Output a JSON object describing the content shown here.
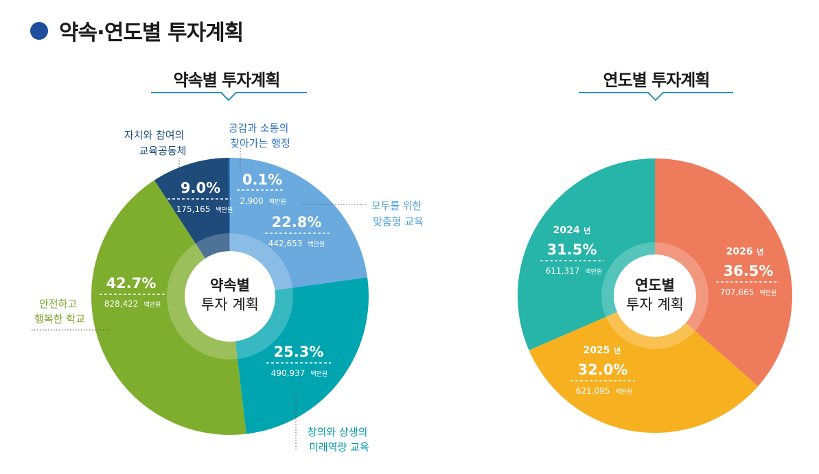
{
  "page_title": "약속·연도별 투자계획",
  "colors": {
    "header_dot": "#1f4e9c",
    "underline": "#2a8fc4",
    "slice_pledge": [
      "#6aaadf",
      "#00a5b0",
      "#7fae2e",
      "#1e4b7a",
      "#2f7fcf"
    ],
    "slice_year": [
      "#ee7b5c",
      "#f6b020",
      "#26b5a8"
    ]
  },
  "unit_label": "백만원",
  "chart_data": [
    {
      "type": "pie",
      "variant": "donut",
      "title": "약속별 투자계획",
      "center_label": [
        "약속별",
        "투자 계획"
      ],
      "start_at": "12 o'clock",
      "direction": "clockwise",
      "slices": [
        {
          "name_lines": [
            "모두를 위한",
            "맞춤형 교육"
          ],
          "percent_label": "22.8%",
          "amount_label": "442,653",
          "value": 442653
        },
        {
          "name_lines": [
            "창의와 상생의",
            "미래역량 교육"
          ],
          "percent_label": "25.3%",
          "amount_label": "490,937",
          "value": 490937
        },
        {
          "name_lines": [
            "안전하고",
            "행복한 학교"
          ],
          "percent_label": "42.7%",
          "amount_label": "828,422",
          "value": 828422
        },
        {
          "name_lines": [
            "자치와 참여의",
            "교육공동체"
          ],
          "percent_label": "9.0%",
          "amount_label": "175,165",
          "value": 175165
        },
        {
          "name_lines": [
            "공감과 소통의",
            "찾아가는 행정"
          ],
          "percent_label": "0.1%",
          "amount_label": "2,900",
          "value": 2900
        }
      ]
    },
    {
      "type": "pie",
      "variant": "donut",
      "title": "연도별 투자계획",
      "center_label": [
        "연도별",
        "투자 계획"
      ],
      "start_at": "12 o'clock",
      "direction": "clockwise",
      "slices": [
        {
          "year": "2026",
          "year_suffix": "년",
          "percent_label": "36.5%",
          "amount_label": "707,665",
          "value": 707665
        },
        {
          "year": "2025",
          "year_suffix": "년",
          "percent_label": "32.0%",
          "amount_label": "621,095",
          "value": 621095
        },
        {
          "year": "2024",
          "year_suffix": "년",
          "percent_label": "31.5%",
          "amount_label": "611,317",
          "value": 611317
        }
      ]
    }
  ]
}
